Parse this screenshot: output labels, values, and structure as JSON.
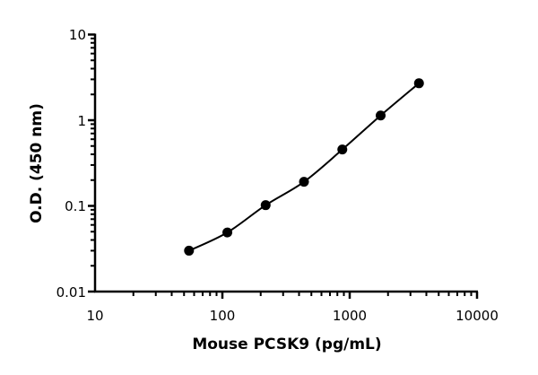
{
  "chart_data": {
    "type": "line",
    "title": "",
    "xlabel": "Mouse PCSK9 (pg/mL)",
    "ylabel": "O.D. (450 nm)",
    "x_scale": "log",
    "y_scale": "log",
    "xlim": [
      10,
      10000
    ],
    "ylim": [
      0.01,
      10
    ],
    "x_ticks": [
      "10",
      "100",
      "1000",
      "10000"
    ],
    "y_ticks": [
      "0.01",
      "0.1",
      "1",
      "10"
    ],
    "grid": false,
    "color": "#000000",
    "series": [
      {
        "x": [
          54.7,
          109.4,
          218.75,
          437.5,
          875,
          1750,
          3500
        ],
        "y": [
          0.03,
          0.049,
          0.102,
          0.191,
          0.455,
          1.135,
          2.7
        ]
      }
    ]
  }
}
